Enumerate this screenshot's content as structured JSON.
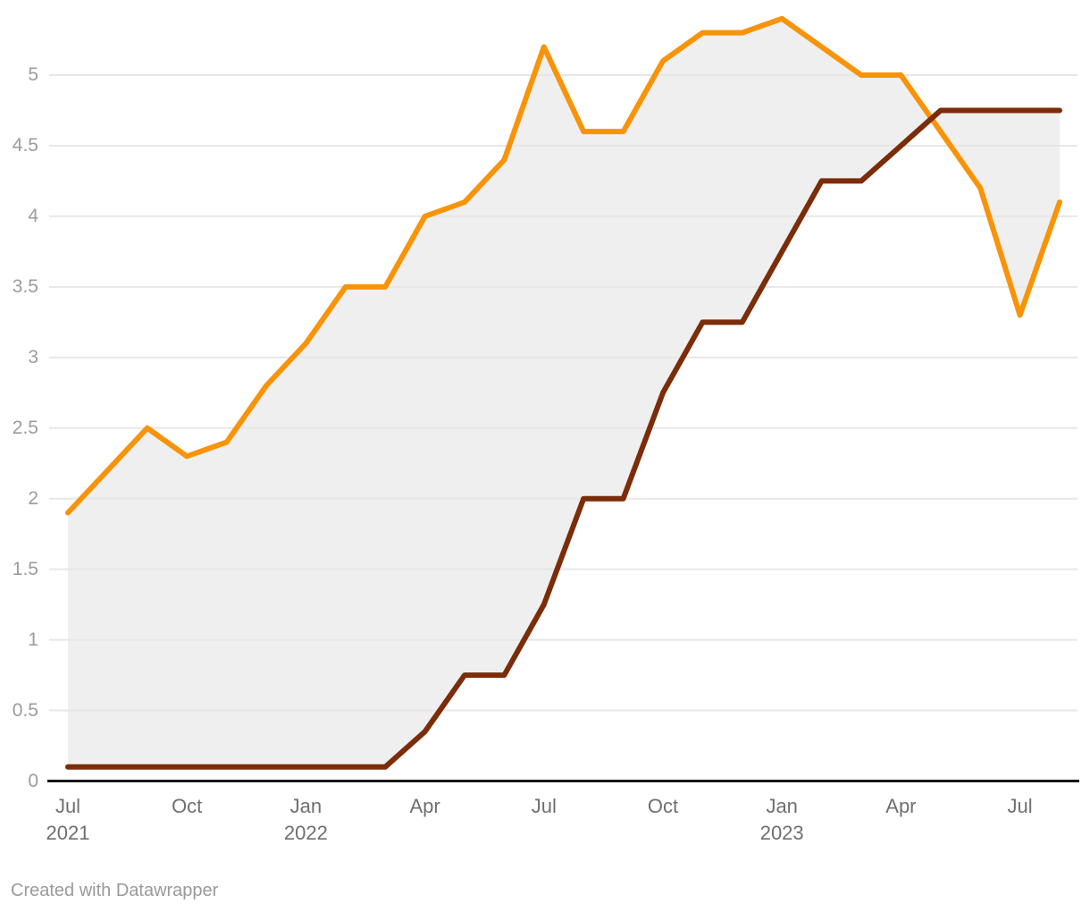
{
  "chart_data": {
    "type": "line",
    "title": "",
    "legend": "none",
    "x": [
      "Jul 2021",
      "Aug 2021",
      "Sep 2021",
      "Oct 2021",
      "Nov 2021",
      "Dec 2021",
      "Jan 2022",
      "Feb 2022",
      "Mar 2022",
      "Apr 2022",
      "May 2022",
      "Jun 2022",
      "Jul 2022",
      "Aug 2022",
      "Sep 2022",
      "Oct 2022",
      "Nov 2022",
      "Dec 2022",
      "Jan 2023",
      "Feb 2023",
      "Mar 2023",
      "Apr 2023",
      "May 2023",
      "Jun 2023",
      "Jul 2023",
      "Aug 2023"
    ],
    "series": [
      {
        "id": "orange-line",
        "color": "#f99307",
        "values": [
          1.9,
          2.2,
          2.5,
          2.3,
          2.4,
          2.8,
          3.1,
          3.5,
          3.5,
          4.0,
          4.1,
          4.4,
          5.2,
          4.6,
          4.6,
          5.1,
          5.3,
          5.3,
          5.4,
          5.2,
          5.0,
          5.0,
          4.6,
          4.2,
          3.3,
          4.1
        ]
      },
      {
        "id": "dark-brown-line",
        "color": "#7b2c08",
        "values": [
          0.1,
          0.1,
          0.1,
          0.1,
          0.1,
          0.1,
          0.1,
          0.1,
          0.1,
          0.35,
          0.75,
          0.75,
          1.25,
          2.0,
          2.0,
          2.75,
          3.25,
          3.25,
          3.75,
          4.25,
          4.25,
          4.5,
          4.75,
          4.75,
          4.75,
          4.75
        ]
      }
    ],
    "fill_between_color": "#efefef",
    "grid": true,
    "y_axis": {
      "range": [
        0,
        5.4
      ],
      "ticks": [
        {
          "value": 0,
          "label": "0"
        },
        {
          "value": 0.5,
          "label": "0.5"
        },
        {
          "value": 1,
          "label": "1"
        },
        {
          "value": 1.5,
          "label": "1.5"
        },
        {
          "value": 2,
          "label": "2"
        },
        {
          "value": 2.5,
          "label": "2.5"
        },
        {
          "value": 3,
          "label": "3"
        },
        {
          "value": 3.5,
          "label": "3.5"
        },
        {
          "value": 4,
          "label": "4"
        },
        {
          "value": 4.5,
          "label": "4.5"
        },
        {
          "value": 5,
          "label": "5"
        }
      ]
    },
    "x_axis": {
      "ticks": [
        {
          "index": 0,
          "label": "Jul",
          "year": "2021"
        },
        {
          "index": 3,
          "label": "Oct",
          "year": ""
        },
        {
          "index": 6,
          "label": "Jan",
          "year": "2022"
        },
        {
          "index": 9,
          "label": "Apr",
          "year": ""
        },
        {
          "index": 12,
          "label": "Jul",
          "year": ""
        },
        {
          "index": 15,
          "label": "Oct",
          "year": ""
        },
        {
          "index": 18,
          "label": "Jan",
          "year": "2023"
        },
        {
          "index": 21,
          "label": "Apr",
          "year": ""
        },
        {
          "index": 24,
          "label": "Jul",
          "year": ""
        }
      ]
    }
  },
  "colors": {
    "background": "#ffffff",
    "gridline": "#e7e7e7",
    "axis_line": "#171717",
    "y_tick_text": "#9c9c9c",
    "x_tick_text": "#6f6f6f",
    "footer_text": "#9a9a9a"
  },
  "footer": {
    "text": "Created with Datawrapper"
  }
}
